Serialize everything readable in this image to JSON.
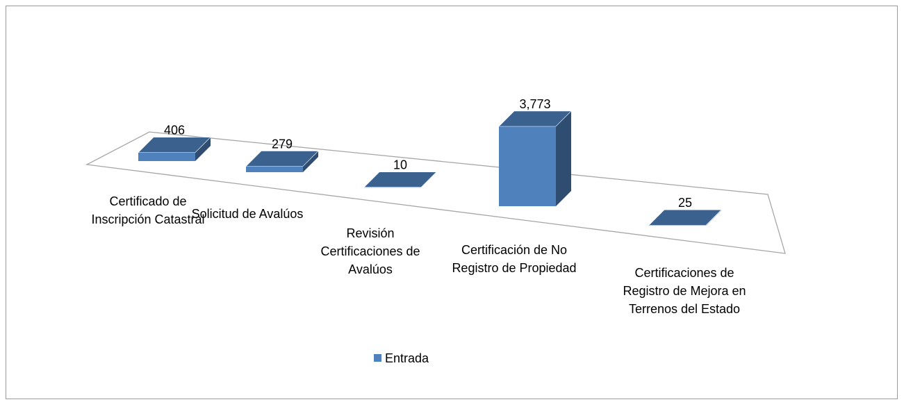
{
  "chart_data": {
    "type": "bar",
    "categories": [
      "Certificado de Inscripción Catastral",
      "Solicitud de Avalúos",
      "Revisión Certificaciones de Avalúos",
      "Certificación de No Registro de Propiedad",
      "Certificaciones de Registro de Mejora en Terrenos del Estado"
    ],
    "series": [
      {
        "name": "Entrada",
        "color": "#4f81bd",
        "values": [
          406,
          279,
          10,
          3773,
          25
        ],
        "value_labels": [
          "406",
          "279",
          "10",
          "3,773",
          "25"
        ]
      }
    ],
    "legend": "bottom"
  }
}
